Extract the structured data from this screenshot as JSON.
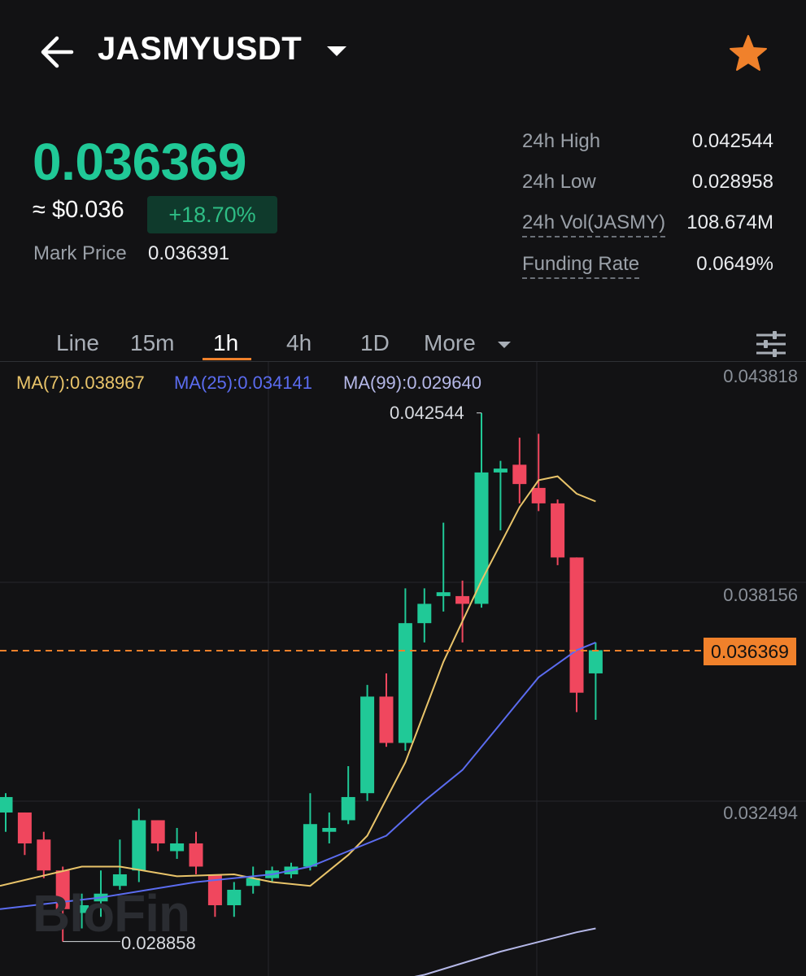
{
  "header": {
    "symbol": "JASMYUSDT",
    "icons": {
      "back": "back-arrow-icon",
      "dropdown": "chevron-down-icon",
      "favorite": "star-icon"
    },
    "favorite_color": "#f0812b"
  },
  "price": {
    "last": "0.036369",
    "usd_approx": "≈ $0.036",
    "change": "+18.70%",
    "mark_label": "Mark Price",
    "mark_value": "0.036391",
    "up_color": "#20c997"
  },
  "stats": [
    {
      "label": "24h High",
      "value": "0.042544"
    },
    {
      "label": "24h Low",
      "value": "0.028958"
    },
    {
      "label": "24h Vol(JASMY)",
      "value": "108.674M"
    },
    {
      "label": "Funding Rate",
      "value": "0.0649%"
    }
  ],
  "tabs": {
    "items": [
      "Line",
      "15m",
      "1h",
      "4h",
      "1D",
      "More"
    ],
    "active": "1h",
    "settings_icon": "sliders-icon"
  },
  "chart_data": {
    "type": "candlestick",
    "interval": "1h",
    "ma_legend": [
      {
        "label": "MA(7):0.038967",
        "color": "#e9c46a"
      },
      {
        "label": "MA(25):0.034141",
        "color": "#5b6cf0"
      },
      {
        "label": "MA(99):0.029640",
        "color": "#b5b8e8"
      }
    ],
    "y_axis_ticks": [
      "0.043818",
      "0.038156",
      "0.032494"
    ],
    "current_price": "0.036369",
    "high_label": "0.042544",
    "low_label": "0.028858",
    "watermark": "BloFin",
    "colors": {
      "up": "#20c997",
      "down": "#f0475e",
      "current_line": "#f0812b"
    },
    "candles": [
      {
        "o": 0.0322,
        "h": 0.0327,
        "c": 0.0326,
        "l": 0.0317
      },
      {
        "o": 0.0322,
        "h": 0.0322,
        "c": 0.0314,
        "l": 0.0311
      },
      {
        "o": 0.0315,
        "h": 0.0317,
        "c": 0.0307,
        "l": 0.0305
      },
      {
        "o": 0.0307,
        "h": 0.0308,
        "c": 0.0297,
        "l": 0.02886
      },
      {
        "o": 0.0296,
        "h": 0.0301,
        "c": 0.0298,
        "l": 0.0292
      },
      {
        "o": 0.0299,
        "h": 0.0307,
        "c": 0.0301,
        "l": 0.0295
      },
      {
        "o": 0.0303,
        "h": 0.0315,
        "c": 0.0306,
        "l": 0.0302
      },
      {
        "o": 0.0307,
        "h": 0.0323,
        "c": 0.032,
        "l": 0.0304
      },
      {
        "o": 0.032,
        "h": 0.032,
        "c": 0.0314,
        "l": 0.0312
      },
      {
        "o": 0.0312,
        "h": 0.0318,
        "c": 0.0314,
        "l": 0.031
      },
      {
        "o": 0.0314,
        "h": 0.0317,
        "c": 0.0308,
        "l": 0.0306
      },
      {
        "o": 0.0306,
        "h": 0.0306,
        "c": 0.0298,
        "l": 0.0295
      },
      {
        "o": 0.0298,
        "h": 0.0304,
        "c": 0.0302,
        "l": 0.0295
      },
      {
        "o": 0.0303,
        "h": 0.0308,
        "c": 0.0305,
        "l": 0.0301
      },
      {
        "o": 0.0305,
        "h": 0.0308,
        "c": 0.0307,
        "l": 0.0304
      },
      {
        "o": 0.0306,
        "h": 0.0309,
        "c": 0.0308,
        "l": 0.0305
      },
      {
        "o": 0.0308,
        "h": 0.0327,
        "c": 0.0319,
        "l": 0.0307
      },
      {
        "o": 0.0317,
        "h": 0.0322,
        "c": 0.0318,
        "l": 0.0314
      },
      {
        "o": 0.032,
        "h": 0.0334,
        "c": 0.0326,
        "l": 0.0319
      },
      {
        "o": 0.0327,
        "h": 0.0355,
        "c": 0.0352,
        "l": 0.0325
      },
      {
        "o": 0.0352,
        "h": 0.0358,
        "c": 0.034,
        "l": 0.0339
      },
      {
        "o": 0.034,
        "h": 0.038,
        "c": 0.0371,
        "l": 0.0338
      },
      {
        "o": 0.0371,
        "h": 0.038,
        "c": 0.0376,
        "l": 0.0366
      },
      {
        "o": 0.0378,
        "h": 0.0397,
        "c": 0.0379,
        "l": 0.0374
      },
      {
        "o": 0.0378,
        "h": 0.0382,
        "c": 0.0376,
        "l": 0.0366
      },
      {
        "o": 0.0376,
        "h": 0.04254,
        "c": 0.041,
        "l": 0.0375
      },
      {
        "o": 0.041,
        "h": 0.0413,
        "c": 0.0411,
        "l": 0.0395
      },
      {
        "o": 0.0412,
        "h": 0.0419,
        "c": 0.0407,
        "l": 0.0402
      },
      {
        "o": 0.0406,
        "h": 0.042,
        "c": 0.0402,
        "l": 0.04
      },
      {
        "o": 0.0402,
        "h": 0.0403,
        "c": 0.0388,
        "l": 0.0386
      },
      {
        "o": 0.0388,
        "h": 0.0388,
        "c": 0.0353,
        "l": 0.0348
      },
      {
        "o": 0.0358,
        "h": 0.0366,
        "c": 0.0364,
        "l": 0.0346
      }
    ],
    "ma7": [
      [
        0,
        0.0303
      ],
      [
        4,
        0.0308
      ],
      [
        6,
        0.0308
      ],
      [
        9,
        0.03055
      ],
      [
        12,
        0.0306
      ],
      [
        14,
        0.0304
      ],
      [
        16,
        0.0303
      ],
      [
        18,
        0.0311
      ],
      [
        19,
        0.0316
      ],
      [
        21,
        0.0335
      ],
      [
        23,
        0.0361
      ],
      [
        25,
        0.0382
      ],
      [
        27,
        0.0401
      ],
      [
        28,
        0.0408
      ],
      [
        29,
        0.0409
      ],
      [
        30,
        0.04045
      ],
      [
        31,
        0.04025
      ]
    ],
    "ma25": [
      [
        0,
        0.0297
      ],
      [
        5,
        0.03
      ],
      [
        10,
        0.0304
      ],
      [
        14,
        0.0306
      ],
      [
        16,
        0.0308
      ],
      [
        18,
        0.0312
      ],
      [
        20,
        0.0316
      ],
      [
        22,
        0.0325
      ],
      [
        24,
        0.0333
      ],
      [
        26,
        0.0345
      ],
      [
        28,
        0.0357
      ],
      [
        30,
        0.0364
      ],
      [
        31,
        0.0366
      ]
    ],
    "ma99": [
      [
        14,
        0.0272
      ],
      [
        18,
        0.0276
      ],
      [
        22,
        0.028
      ],
      [
        26,
        0.0286
      ],
      [
        30,
        0.0291
      ],
      [
        31,
        0.0292
      ]
    ]
  }
}
